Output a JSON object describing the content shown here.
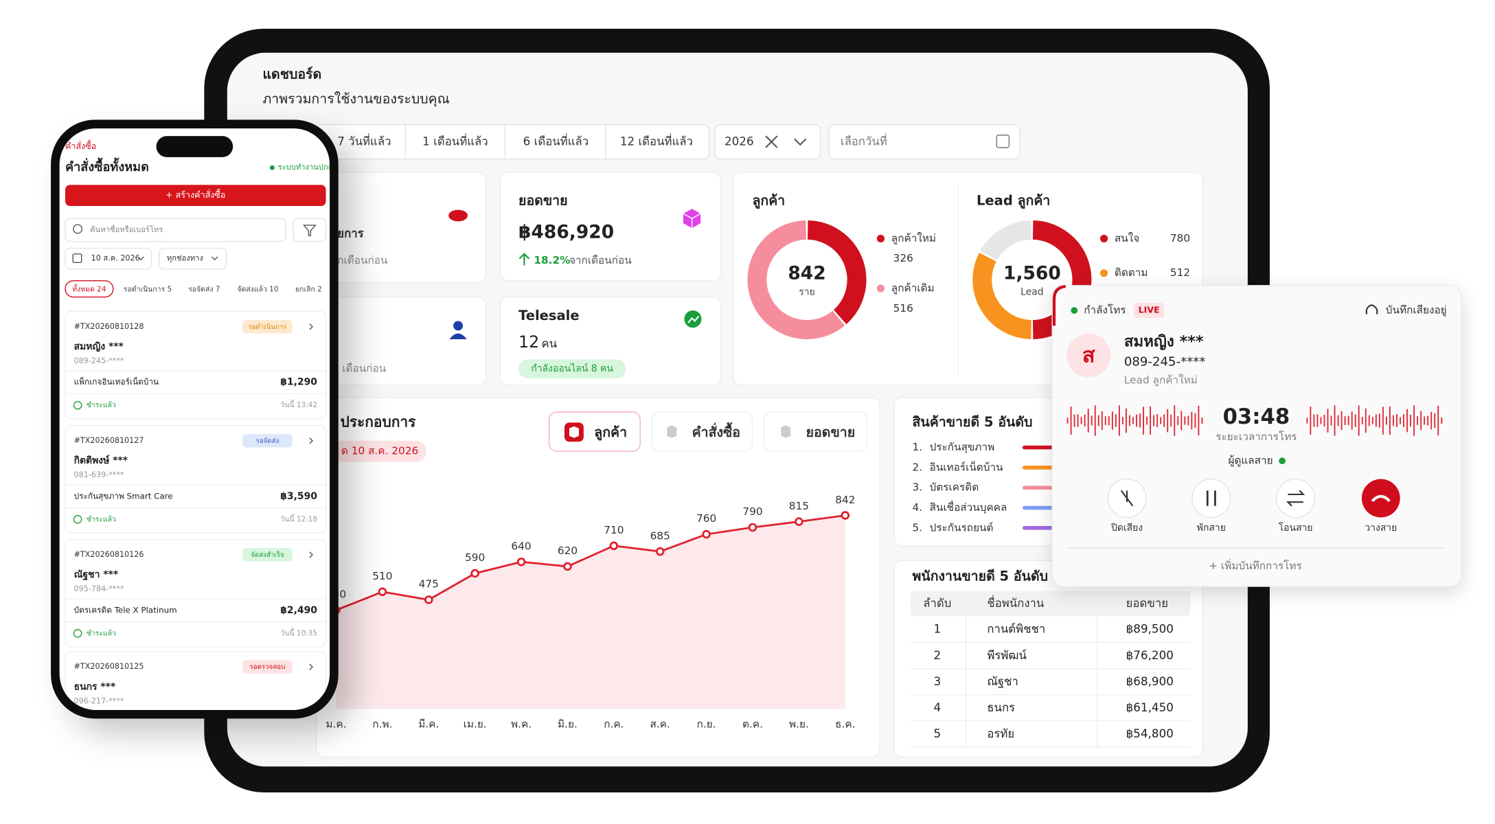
{
  "tablet": {
    "title": "แดชบอร์ด",
    "subtitle": "ภาพรวมการใช้งานของระบบคุณ",
    "filters": [
      "7 วันที่แล้ว",
      "1 เดือนที่แล้ว",
      "6 เดือนที่แล้ว",
      "12 เดือนที่แล้ว"
    ],
    "year": "2026",
    "date_placeholder": "เลือกวันที่",
    "orders_card": {
      "label": "ยการ",
      "note": "กเดือนก่อน"
    },
    "agents_card": {
      "note": "เดือนก่อน"
    },
    "sales_card": {
      "label": "ยอดขาย",
      "amount": "฿486,920",
      "change": "18.2%",
      "change_note": "จากเดือนก่อน"
    },
    "telesale_card": {
      "label": "Telesale",
      "count": "12",
      "unit": "คน",
      "badge": "กำลังออนไลน์ 8 คน"
    },
    "chart_panel": {
      "title": "ประกอบการ",
      "date_pill": "ด 10 ส.ค. 2026",
      "tabs": [
        "ลูกค้า",
        "คำสั่งซื้อ",
        "ยอดขาย"
      ]
    },
    "top_products": {
      "title": "สินค้าขายดี 5 อันดับ",
      "items": [
        {
          "rank": "1.",
          "name": "ประกันสุขภาพ"
        },
        {
          "rank": "2.",
          "name": "อินเทอร์เน็ตบ้าน"
        },
        {
          "rank": "3.",
          "name": "บัตรเครดิต"
        },
        {
          "rank": "4.",
          "name": "สินเชื่อส่วนบุคคล"
        },
        {
          "rank": "5.",
          "name": "ประกันรถยนต์"
        }
      ]
    },
    "top_agents": {
      "title": "พนักงานขายดี 5 อันดับ",
      "headers": [
        "ลำดับ",
        "ชื่อพนักงาน",
        "ยอดขาย"
      ],
      "rows": [
        [
          "1",
          "กานต์พิชชา",
          "฿89,500"
        ],
        [
          "2",
          "พีรพัฒน์",
          "฿76,200"
        ],
        [
          "3",
          "ณัฐชา",
          "฿68,900"
        ],
        [
          "4",
          "ธนกร",
          "฿61,450"
        ],
        [
          "5",
          "อรทัย",
          "฿54,800"
        ]
      ]
    }
  },
  "call": {
    "status": "กำลังโทร",
    "live": "LIVE",
    "recording": "บันทึกเสียงอยู่",
    "avatar": "ส",
    "name": "สมหญิง ***",
    "phone": "089-245-****",
    "tag": "Lead ลูกค้าใหม่",
    "duration": "03:48",
    "duration_label": "ระยะเวลาการโทร",
    "handler": "ผู้ดูแลสาย",
    "buttons": [
      "ปิดเสียง",
      "พักสาย",
      "โอนสาย",
      "วางสาย"
    ],
    "add_note": "+ เพิ่มบันทึกการโทร"
  },
  "phone": {
    "section": "คำสั่งซื้อ",
    "title": "คำสั่งซื้อทั้งหมด",
    "system_status": "ระบบทำงานปกติ",
    "create_button": "+ สร้างคำสั่งซื้อ",
    "search_placeholder": "ค้นหาชื่อหรือเบอร์โทร",
    "date_chip": "10 ส.ค. 2026",
    "channel_chip": "ทุกช่องทาง",
    "tabs": [
      "ทั้งหมด 24",
      "รอดำเนินการ 5",
      "รอจัดส่ง 7",
      "จัดส่งแล้ว 10",
      "ยกเลิก 2"
    ],
    "orders": [
      {
        "id": "#TX20260810128",
        "status": "รอดำเนินการ",
        "name": "สมหญิง ***",
        "phone": "089-245-****",
        "product": "แพ็กเกจอินเทอร์เน็ตบ้าน",
        "price": "฿1,290",
        "payment": "ชำระแล้ว",
        "time": "วันนี้ 13:42"
      },
      {
        "id": "#TX20260810127",
        "status": "รอจัดส่ง",
        "name": "กิตติพงษ์ ***",
        "phone": "081-639-****",
        "product": "ประกันสุขภาพ Smart Care",
        "price": "฿3,590",
        "payment": "ชำระแล้ว",
        "time": "วันนี้ 12:18"
      },
      {
        "id": "#TX20260810126",
        "status": "จัดส่งสำเร็จ",
        "name": "ณัฐชา ***",
        "phone": "095-784-****",
        "product": "บัตรเครดิต Tele X Platinum",
        "price": "฿2,490",
        "payment": "ชำระแล้ว",
        "time": "วันนี้ 10:35"
      },
      {
        "id": "#TX20260810125",
        "status": "รอตรวจสอบ",
        "name": "ธนกร ***",
        "phone": "096-217-****"
      }
    ]
  },
  "chart_data": [
    {
      "type": "line",
      "categories": [
        "ม.ค.",
        "ก.พ.",
        "มี.ค.",
        "เม.ย.",
        "พ.ค.",
        "มิ.ย.",
        "ก.ค.",
        "ส.ค.",
        "ก.ย.",
        "ต.ค.",
        "พ.ย.",
        "ธ.ค."
      ],
      "values": [
        430,
        510,
        475,
        590,
        640,
        620,
        710,
        685,
        760,
        790,
        815,
        842
      ],
      "color": "#e0202e",
      "ylim": [
        0,
        1000
      ]
    },
    {
      "type": "donut",
      "title": "ลูกค้า",
      "categories": [
        "ลูกค้าใหม่",
        "ลูกค้าเดิม"
      ],
      "values": [
        326,
        516
      ],
      "colors": [
        "#d0101e",
        "#f58d9c"
      ],
      "total": 842,
      "unit": "ราย"
    },
    {
      "type": "donut",
      "title": "Lead ลูกค้า",
      "categories": [
        "สนใจ",
        "ติดตาม"
      ],
      "values": [
        780,
        512
      ],
      "colors": [
        "#d0101e",
        "#f7931e"
      ],
      "total": {
        "value": 1560,
        "label": "1,560"
      },
      "unit": "Lead",
      "rest_color": "#e6e6e6"
    }
  ]
}
